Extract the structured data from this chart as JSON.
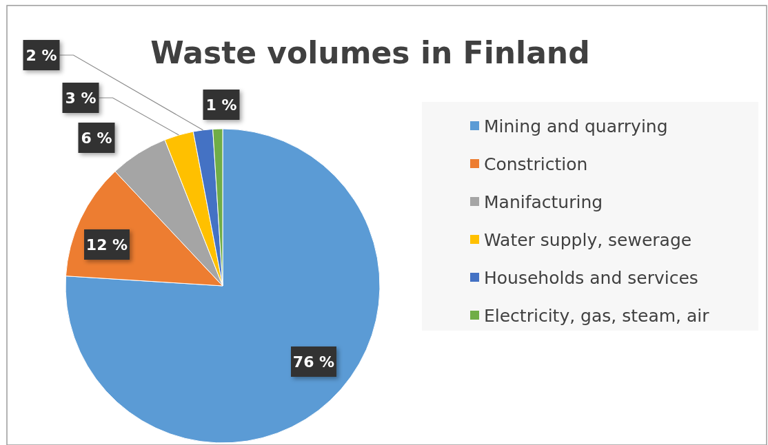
{
  "chart_data": {
    "type": "pie",
    "title": "Waste volumes in Finland",
    "categories": [
      "Mining and quarrying",
      "Constriction",
      "Manifacturing",
      "Water supply, sewerage",
      "Households and services",
      "Electricity, gas, steam, air"
    ],
    "values": [
      76,
      12,
      6,
      3,
      2,
      1
    ],
    "colors": [
      "#5b9bd5",
      "#ed7d31",
      "#a5a5a5",
      "#ffc000",
      "#4472c4",
      "#70ad47"
    ],
    "value_labels": [
      "76 %",
      "12 %",
      "6 %",
      "3 %",
      "2 %",
      "1 %"
    ],
    "legend": "right"
  }
}
